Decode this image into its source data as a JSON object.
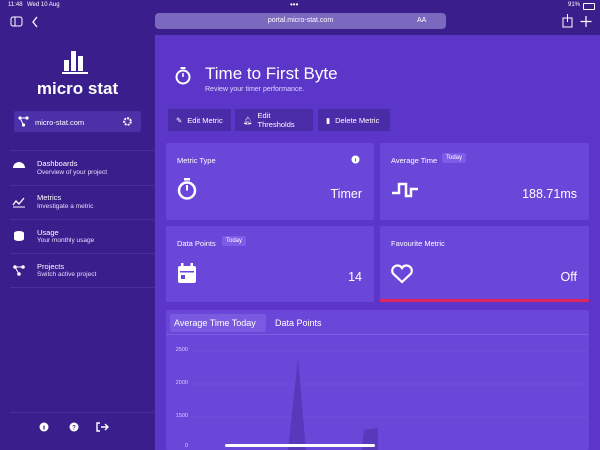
{
  "status_bar": {
    "time": "11:48",
    "date": "Wed 10 Aug",
    "battery": "91%"
  },
  "browser": {
    "url": "portal.micro-stat.com",
    "reader": "AA"
  },
  "sidebar": {
    "brand": "micro stat",
    "project": "micro-stat.com",
    "nav": [
      {
        "title": "Dashboards",
        "subtitle": "Overview of your project"
      },
      {
        "title": "Metrics",
        "subtitle": "Investigate a metric"
      },
      {
        "title": "Usage",
        "subtitle": "Your monthly usage"
      },
      {
        "title": "Projects",
        "subtitle": "Switch active project"
      }
    ]
  },
  "header": {
    "title": "Time to First Byte",
    "subtitle": "Review your timer performance."
  },
  "actions": [
    "Edit Metric",
    "Edit Thresholds",
    "Delete Metric"
  ],
  "cards": [
    {
      "label": "Metric Type",
      "value": "Timer"
    },
    {
      "label": "Average Time",
      "badge": "Today",
      "value": "188.71ms"
    },
    {
      "label": "Data Points",
      "badge": "Today",
      "value": 14
    },
    {
      "label": "Favourite Metric",
      "value": "Off"
    }
  ],
  "tabs": [
    "Average Time Today",
    "Data Points"
  ],
  "chart_axis": [
    2500,
    2000,
    1500,
    0
  ]
}
